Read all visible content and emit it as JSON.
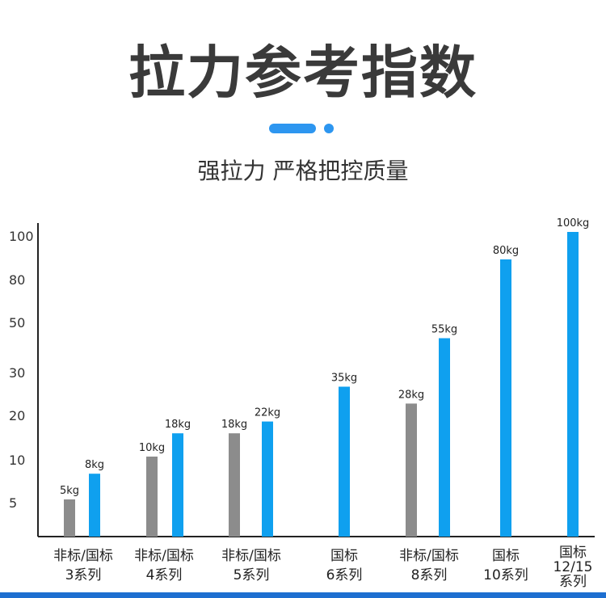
{
  "header": {
    "title": "拉力参考指数",
    "subtitle": "强拉力 严格把控质量"
  },
  "colors": {
    "gray_bar": "#8c8c8c",
    "blue_bar": "#0fa0ef",
    "axis": "#222222",
    "accent": "#2d96f0"
  },
  "chart_data": {
    "type": "bar",
    "title": "",
    "xlabel": "",
    "ylabel": "",
    "y_ticks": [
      "5",
      "10",
      "20",
      "30",
      "50",
      "80",
      "100"
    ],
    "unit": "kg",
    "groups": [
      {
        "label_lines": [
          "非标/国标",
          "3系列"
        ],
        "bars": [
          {
            "kind": "gray",
            "value": 5,
            "label": "5kg"
          },
          {
            "kind": "blue",
            "value": 8,
            "label": "8kg"
          }
        ]
      },
      {
        "label_lines": [
          "非标/国标",
          "4系列"
        ],
        "bars": [
          {
            "kind": "gray",
            "value": 10,
            "label": "10kg"
          },
          {
            "kind": "blue",
            "value": 18,
            "label": "18kg"
          }
        ]
      },
      {
        "label_lines": [
          "非标/国标",
          "5系列"
        ],
        "bars": [
          {
            "kind": "gray",
            "value": 18,
            "label": "18kg"
          },
          {
            "kind": "blue",
            "value": 22,
            "label": "22kg"
          }
        ]
      },
      {
        "label_lines": [
          "国标",
          "6系列"
        ],
        "bars": [
          {
            "kind": "blue",
            "value": 35,
            "label": "35kg"
          }
        ]
      },
      {
        "label_lines": [
          "非标/国标",
          "8系列"
        ],
        "bars": [
          {
            "kind": "gray",
            "value": 28,
            "label": "28kg"
          },
          {
            "kind": "blue",
            "value": 55,
            "label": "55kg"
          }
        ]
      },
      {
        "label_lines": [
          "国标",
          "10系列"
        ],
        "bars": [
          {
            "kind": "blue",
            "value": 80,
            "label": "80kg"
          }
        ]
      },
      {
        "label_lines": [
          "国标",
          "12/15",
          "系列"
        ],
        "bars": [
          {
            "kind": "blue",
            "value": 100,
            "label": "100kg"
          }
        ]
      }
    ]
  }
}
